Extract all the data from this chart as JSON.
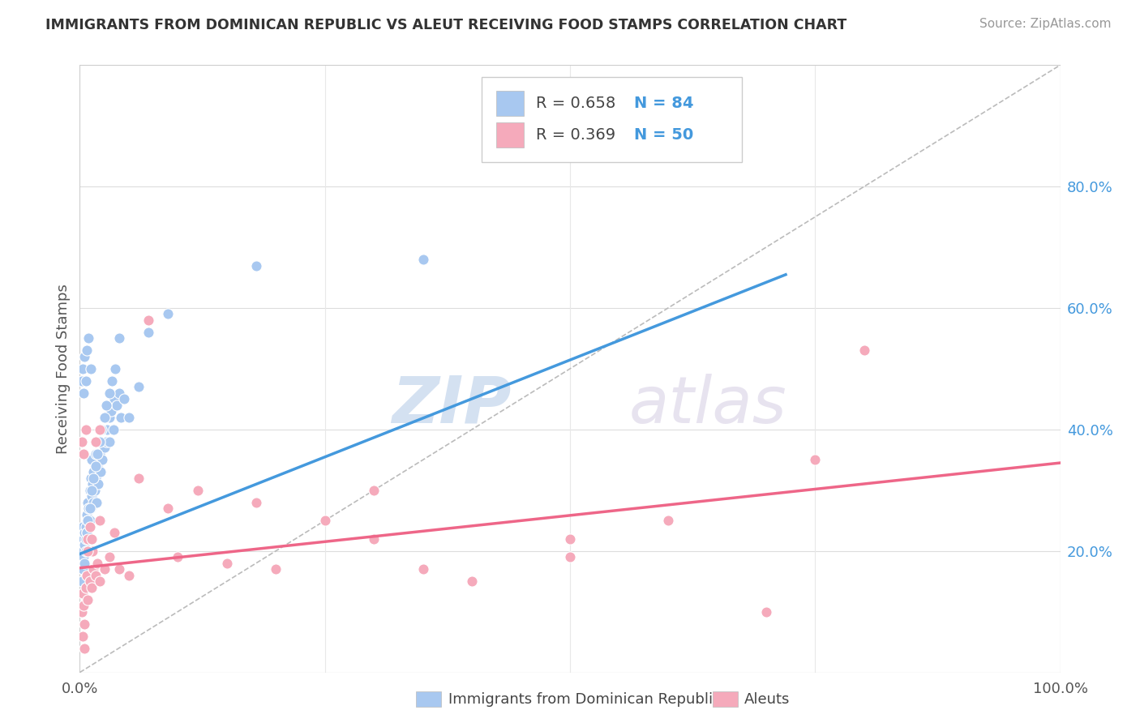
{
  "title": "IMMIGRANTS FROM DOMINICAN REPUBLIC VS ALEUT RECEIVING FOOD STAMPS CORRELATION CHART",
  "source": "Source: ZipAtlas.com",
  "ylabel": "Receiving Food Stamps",
  "legend_blue_r": "0.658",
  "legend_blue_n": "84",
  "legend_pink_r": "0.369",
  "legend_pink_n": "50",
  "blue_color": "#A8C8F0",
  "pink_color": "#F5AABB",
  "blue_line_color": "#4499DD",
  "pink_line_color": "#EE6688",
  "diag_color": "#BBBBBB",
  "watermark_zip": "ZIP",
  "watermark_atlas": "atlas",
  "blue_scatter_x": [
    0.001,
    0.002,
    0.002,
    0.003,
    0.003,
    0.004,
    0.004,
    0.005,
    0.005,
    0.006,
    0.006,
    0.007,
    0.007,
    0.008,
    0.008,
    0.009,
    0.009,
    0.01,
    0.01,
    0.011,
    0.011,
    0.012,
    0.012,
    0.013,
    0.014,
    0.014,
    0.015,
    0.016,
    0.016,
    0.017,
    0.018,
    0.019,
    0.02,
    0.021,
    0.022,
    0.023,
    0.024,
    0.025,
    0.026,
    0.027,
    0.028,
    0.03,
    0.03,
    0.032,
    0.034,
    0.035,
    0.038,
    0.04,
    0.042,
    0.045,
    0.002,
    0.003,
    0.004,
    0.005,
    0.006,
    0.007,
    0.008,
    0.01,
    0.012,
    0.014,
    0.016,
    0.018,
    0.02,
    0.022,
    0.025,
    0.027,
    0.03,
    0.033,
    0.036,
    0.04,
    0.002,
    0.003,
    0.004,
    0.005,
    0.006,
    0.007,
    0.009,
    0.011,
    0.18,
    0.35,
    0.05,
    0.06,
    0.07,
    0.09
  ],
  "blue_scatter_y": [
    0.2,
    0.22,
    0.18,
    0.24,
    0.2,
    0.22,
    0.19,
    0.23,
    0.21,
    0.22,
    0.24,
    0.26,
    0.23,
    0.25,
    0.28,
    0.22,
    0.27,
    0.25,
    0.3,
    0.27,
    0.32,
    0.29,
    0.35,
    0.31,
    0.28,
    0.33,
    0.3,
    0.32,
    0.36,
    0.28,
    0.34,
    0.31,
    0.36,
    0.33,
    0.38,
    0.35,
    0.4,
    0.37,
    0.42,
    0.38,
    0.4,
    0.38,
    0.42,
    0.43,
    0.4,
    0.45,
    0.44,
    0.46,
    0.42,
    0.45,
    0.15,
    0.17,
    0.19,
    0.18,
    0.2,
    0.23,
    0.25,
    0.27,
    0.3,
    0.32,
    0.34,
    0.36,
    0.38,
    0.4,
    0.42,
    0.44,
    0.46,
    0.48,
    0.5,
    0.55,
    0.48,
    0.5,
    0.46,
    0.52,
    0.48,
    0.53,
    0.55,
    0.5,
    0.67,
    0.68,
    0.42,
    0.47,
    0.56,
    0.59
  ],
  "pink_scatter_x": [
    0.002,
    0.003,
    0.004,
    0.005,
    0.006,
    0.007,
    0.008,
    0.01,
    0.012,
    0.014,
    0.016,
    0.018,
    0.02,
    0.002,
    0.004,
    0.006,
    0.008,
    0.01,
    0.013,
    0.016,
    0.02,
    0.025,
    0.03,
    0.04,
    0.05,
    0.07,
    0.09,
    0.12,
    0.15,
    0.2,
    0.25,
    0.3,
    0.35,
    0.4,
    0.5,
    0.6,
    0.7,
    0.8,
    0.003,
    0.005,
    0.008,
    0.012,
    0.02,
    0.035,
    0.06,
    0.1,
    0.18,
    0.3,
    0.5,
    0.75
  ],
  "pink_scatter_y": [
    0.1,
    0.13,
    0.11,
    0.08,
    0.14,
    0.16,
    0.12,
    0.15,
    0.14,
    0.17,
    0.16,
    0.18,
    0.15,
    0.38,
    0.36,
    0.4,
    0.22,
    0.24,
    0.2,
    0.38,
    0.4,
    0.17,
    0.19,
    0.17,
    0.16,
    0.58,
    0.27,
    0.3,
    0.18,
    0.17,
    0.25,
    0.22,
    0.17,
    0.15,
    0.19,
    0.25,
    0.1,
    0.53,
    0.06,
    0.04,
    0.2,
    0.22,
    0.25,
    0.23,
    0.32,
    0.19,
    0.28,
    0.3,
    0.22,
    0.35
  ],
  "blue_line_start_x": 0.0,
  "blue_line_end_x": 0.72,
  "blue_line_start_y": 0.195,
  "blue_line_end_y": 0.655,
  "pink_line_start_x": 0.0,
  "pink_line_end_x": 1.0,
  "pink_line_start_y": 0.172,
  "pink_line_end_y": 0.345,
  "xlim": [
    0.0,
    1.0
  ],
  "ylim": [
    0.0,
    1.0
  ],
  "xtick_vals": [
    0.0,
    1.0
  ],
  "xtick_labels": [
    "0.0%",
    "100.0%"
  ],
  "ytick_right_vals": [
    0.0,
    0.2,
    0.4,
    0.6,
    0.8
  ],
  "ytick_right_labels": [
    "",
    "20.0%",
    "40.0%",
    "60.0%",
    "80.0%"
  ],
  "background_color": "#FFFFFF",
  "grid_color": "#E8E8E8",
  "grid_color_strong": "#DDDDDD"
}
